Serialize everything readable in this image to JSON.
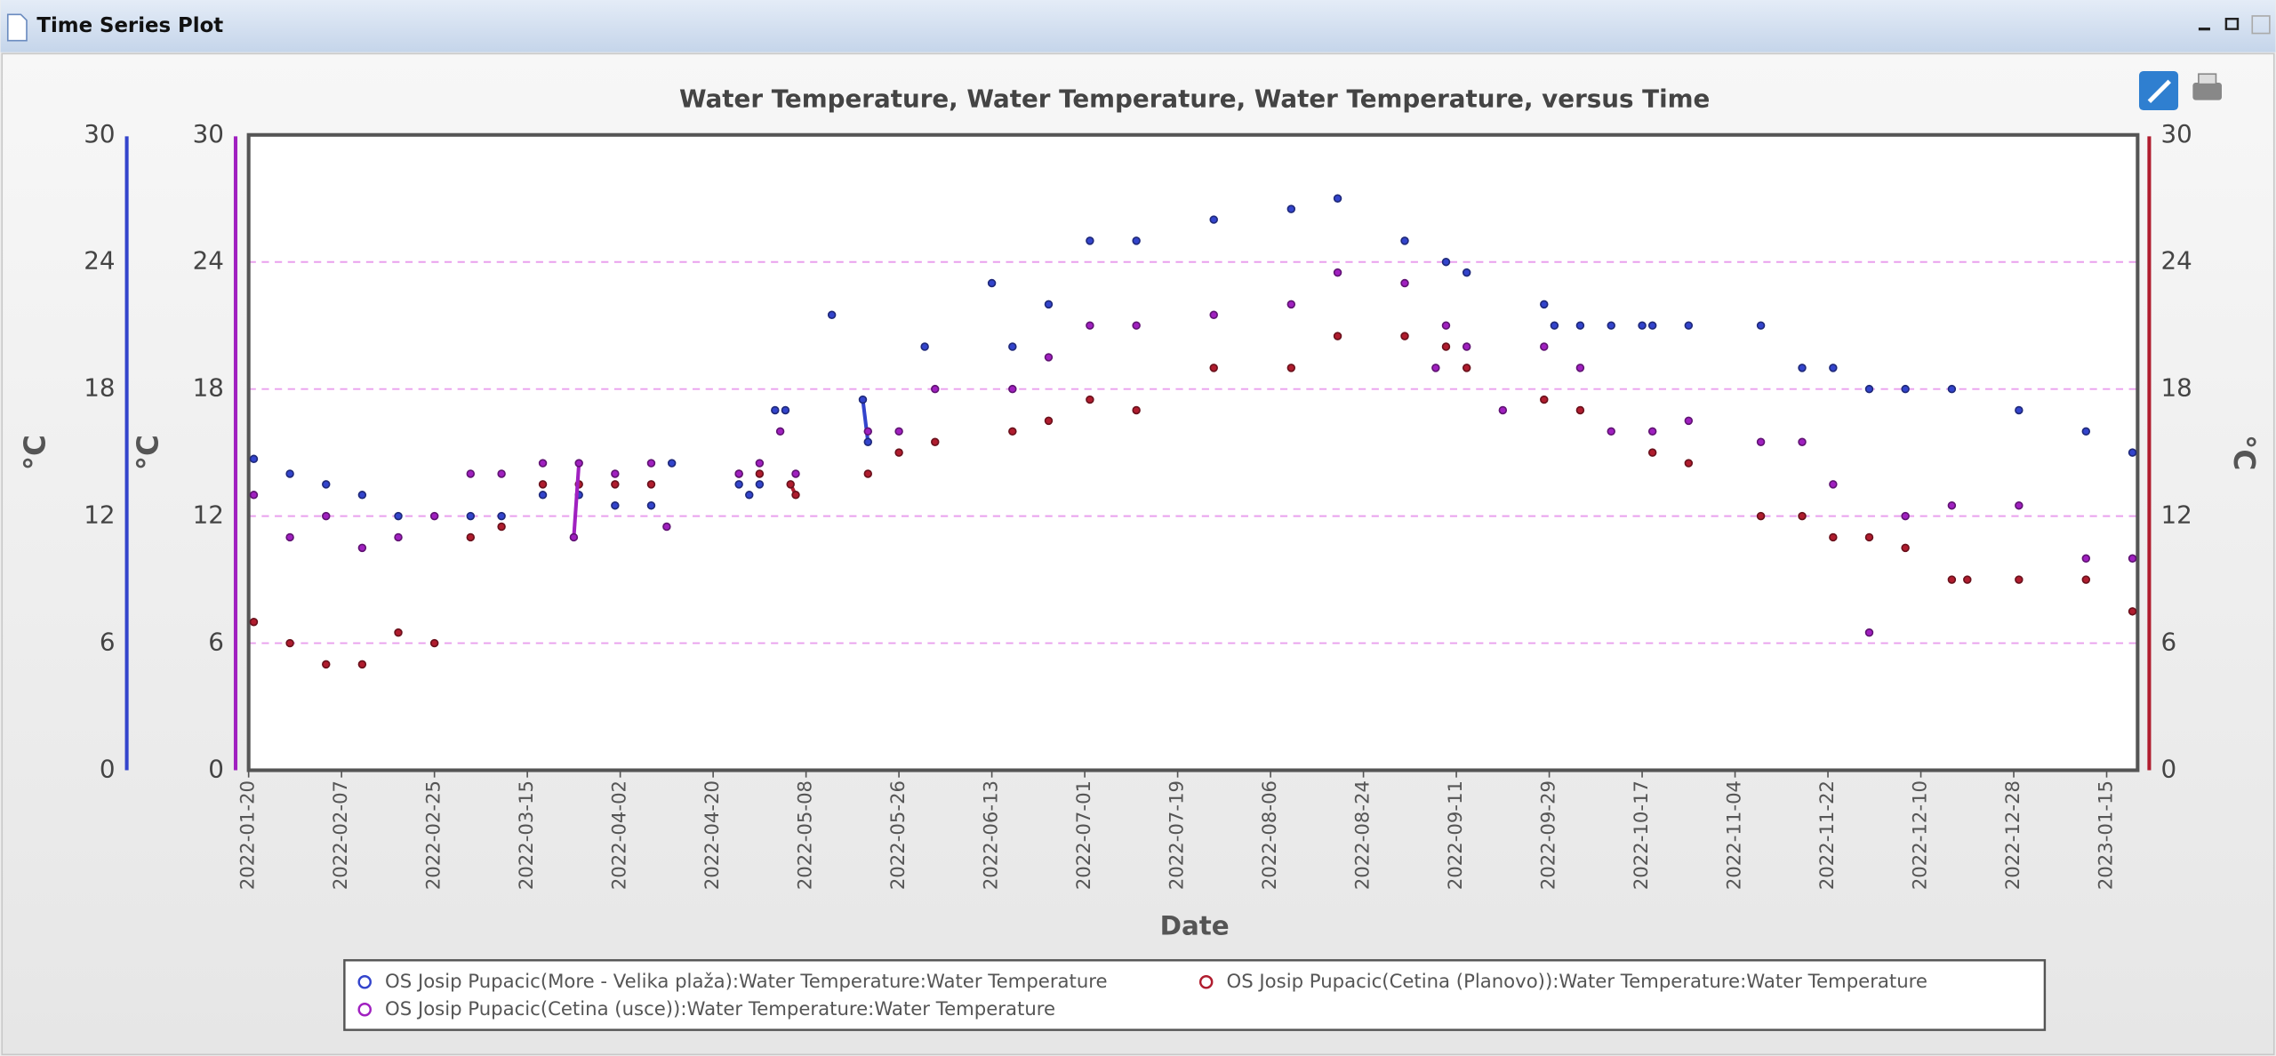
{
  "window_title": "Time Series Plot",
  "chart_data": {
    "type": "scatter",
    "title": "Water Temperature, Water Temperature, Water Temperature, versus Time",
    "x_label": "Date",
    "xlim": [
      "2022-01-20",
      "2023-01-21"
    ],
    "xticks": [
      "2022-01-20",
      "2022-02-07",
      "2022-02-25",
      "2022-03-15",
      "2022-04-02",
      "2022-04-20",
      "2022-05-08",
      "2022-05-26",
      "2022-06-13",
      "2022-07-01",
      "2022-07-19",
      "2022-08-06",
      "2022-08-24",
      "2022-09-11",
      "2022-09-29",
      "2022-10-17",
      "2022-11-04",
      "2022-11-22",
      "2022-12-10",
      "2022-12-28",
      "2023-01-15"
    ],
    "y_label": "°C",
    "ylim": [
      0,
      30
    ],
    "yticks": [
      0,
      6,
      12,
      18,
      24,
      30
    ],
    "y_color": "#a020c0",
    "y2_label": "°C",
    "y2lim": [
      0,
      30
    ],
    "y2ticks": [
      0,
      6,
      12,
      18,
      24,
      30
    ],
    "y2_color": "#b01c2e",
    "y3_label": "°C",
    "y3lim": [
      0,
      30
    ],
    "y3ticks": [
      0,
      6,
      12,
      18,
      24,
      30
    ],
    "y3_color": "#3344cc",
    "grid": true,
    "grid_color": "#e9a0ee",
    "series": [
      {
        "name": "OS Josip Pupacic(More - Velika plaža):Water Temperature:Water Temperature",
        "color": "#3344cc",
        "axis": "y3",
        "x": [
          "2022-01-21",
          "2022-01-28",
          "2022-02-04",
          "2022-02-11",
          "2022-02-18",
          "2022-03-04",
          "2022-03-10",
          "2022-03-18",
          "2022-03-25",
          "2022-04-01",
          "2022-04-08",
          "2022-04-12",
          "2022-04-25",
          "2022-04-27",
          "2022-04-29",
          "2022-05-02",
          "2022-05-04",
          "2022-05-13",
          "2022-05-19",
          "2022-05-20",
          "2022-05-31",
          "2022-06-13",
          "2022-06-17",
          "2022-06-24",
          "2022-07-02",
          "2022-07-11",
          "2022-07-26",
          "2022-08-10",
          "2022-08-19",
          "2022-09-01",
          "2022-09-09",
          "2022-09-13",
          "2022-09-28",
          "2022-09-30",
          "2022-10-05",
          "2022-10-11",
          "2022-10-17",
          "2022-10-19",
          "2022-10-26",
          "2022-11-09",
          "2022-11-17",
          "2022-11-23",
          "2022-11-30",
          "2022-12-07",
          "2022-12-16",
          "2022-12-29",
          "2023-01-11",
          "2023-01-20"
        ],
        "values": [
          14.7,
          14,
          13.5,
          13,
          12,
          12,
          12,
          13,
          13,
          12.5,
          12.5,
          14.5,
          13.5,
          13,
          13.5,
          17,
          17,
          21.5,
          17.5,
          15.5,
          20,
          23,
          20,
          22,
          25,
          25,
          26,
          26.5,
          27,
          25,
          24,
          23.5,
          22,
          21,
          21,
          21,
          21,
          21,
          21,
          21,
          19,
          19,
          18,
          18,
          18,
          17,
          16,
          15
        ]
      },
      {
        "name": "OS Josip Pupacic(Cetina (Planovo)):Water Temperature:Water Temperature",
        "color": "#b01c2e",
        "axis": "y2",
        "x": [
          "2022-01-21",
          "2022-01-28",
          "2022-02-04",
          "2022-02-11",
          "2022-02-18",
          "2022-02-25",
          "2022-03-04",
          "2022-03-10",
          "2022-03-18",
          "2022-03-25",
          "2022-04-01",
          "2022-04-08",
          "2022-04-25",
          "2022-04-29",
          "2022-05-05",
          "2022-05-06",
          "2022-05-20",
          "2022-05-26",
          "2022-06-02",
          "2022-06-17",
          "2022-06-24",
          "2022-07-02",
          "2022-07-11",
          "2022-07-26",
          "2022-08-10",
          "2022-08-19",
          "2022-09-01",
          "2022-09-09",
          "2022-09-13",
          "2022-09-28",
          "2022-10-05",
          "2022-10-19",
          "2022-10-26",
          "2022-11-09",
          "2022-11-17",
          "2022-11-23",
          "2022-11-30",
          "2022-12-07",
          "2022-12-16",
          "2022-12-19",
          "2022-12-29",
          "2023-01-11",
          "2023-01-20"
        ],
        "values": [
          7,
          6,
          5,
          5,
          6.5,
          6,
          11,
          11.5,
          13.5,
          13.5,
          13.5,
          13.5,
          14,
          14,
          13.5,
          13,
          14,
          15,
          15.5,
          16,
          16.5,
          17.5,
          17,
          19,
          19,
          20.5,
          20.5,
          20,
          19,
          17.5,
          17,
          15,
          14.5,
          12,
          12,
          11,
          11,
          10.5,
          9,
          9,
          9,
          9,
          7.5
        ]
      },
      {
        "name": "OS Josip Pupacic(Cetina (usce)):Water Temperature:Water Temperature",
        "color": "#a020c0",
        "axis": "y",
        "x": [
          "2022-01-21",
          "2022-01-28",
          "2022-02-04",
          "2022-02-11",
          "2022-02-18",
          "2022-02-25",
          "2022-03-04",
          "2022-03-10",
          "2022-03-18",
          "2022-03-24",
          "2022-03-25",
          "2022-04-01",
          "2022-04-08",
          "2022-04-11",
          "2022-04-25",
          "2022-04-29",
          "2022-05-03",
          "2022-05-06",
          "2022-05-20",
          "2022-05-26",
          "2022-06-02",
          "2022-06-17",
          "2022-06-24",
          "2022-07-02",
          "2022-07-11",
          "2022-07-26",
          "2022-08-10",
          "2022-08-19",
          "2022-09-01",
          "2022-09-07",
          "2022-09-09",
          "2022-09-13",
          "2022-09-20",
          "2022-09-28",
          "2022-10-05",
          "2022-10-11",
          "2022-10-19",
          "2022-10-26",
          "2022-11-09",
          "2022-11-17",
          "2022-11-23",
          "2022-11-30",
          "2022-12-07",
          "2022-12-16",
          "2022-12-29",
          "2023-01-11",
          "2023-01-20"
        ],
        "values": [
          13,
          11,
          12,
          10.5,
          11,
          12,
          14,
          14,
          14.5,
          11,
          14.5,
          14,
          14.5,
          11.5,
          14,
          14.5,
          16,
          14,
          16,
          16,
          18,
          18,
          19.5,
          21,
          21,
          21.5,
          22,
          23.5,
          23,
          19,
          21,
          20,
          17,
          20,
          19,
          16,
          16,
          16.5,
          15.5,
          15.5,
          13.5,
          6.5,
          12,
          12.5,
          12.5,
          10,
          10
        ]
      }
    ]
  }
}
